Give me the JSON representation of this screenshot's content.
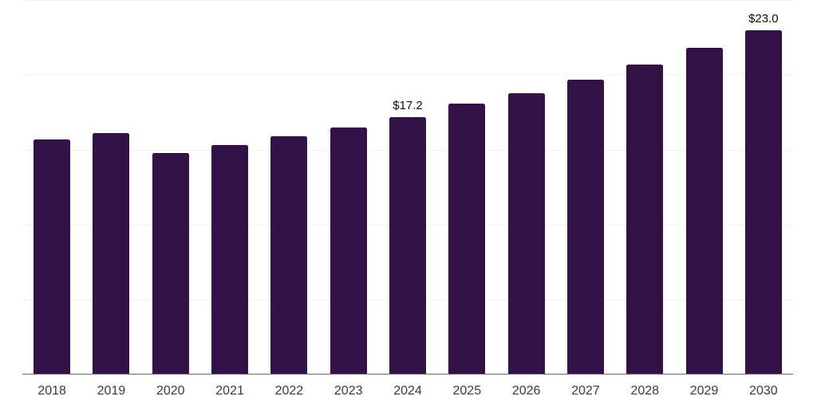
{
  "chart_data": {
    "type": "bar",
    "categories": [
      "2018",
      "2019",
      "2020",
      "2021",
      "2022",
      "2023",
      "2024",
      "2025",
      "2026",
      "2027",
      "2028",
      "2029",
      "2030"
    ],
    "values": [
      15.7,
      16.1,
      14.8,
      15.3,
      15.9,
      16.5,
      17.2,
      18.1,
      18.8,
      19.7,
      20.7,
      21.8,
      23.0
    ],
    "data_labels": [
      "",
      "",
      "",
      "",
      "",
      "",
      "$17.2",
      "",
      "",
      "",
      "",
      "",
      "$23.0"
    ],
    "title": "",
    "xlabel": "",
    "ylabel": "",
    "ylim": [
      0,
      25
    ],
    "grid_step": 5,
    "grid": "horizontal-only",
    "y_tick_labels_visible": false,
    "legend_position": "none",
    "colors": {
      "bar": "#341147",
      "gridline": "#f2f2f2",
      "axis_line": "#6b6b6b",
      "x_tick_text": "#3b3b3b",
      "data_label_text": "#0d0d0d",
      "background": "#ffffff"
    }
  }
}
